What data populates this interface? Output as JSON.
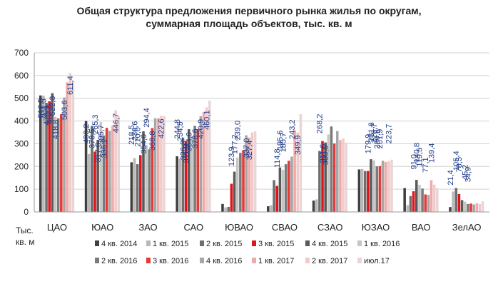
{
  "chart_data": {
    "type": "bar",
    "title_lines": [
      "Общая структура  предложения первичного рынка жилья по округам,",
      "суммарная площадь объектов, тыс. кв. м"
    ],
    "ylabel_lines": [
      "Тыс.",
      "кв. м"
    ],
    "ylim": [
      0,
      700
    ],
    "yticks": [
      0,
      100,
      200,
      300,
      400,
      500,
      600,
      700
    ],
    "grid": true,
    "legend_position": "bottom",
    "categories": [
      "ЦАО",
      "ЮАО",
      "ЗАО",
      "САО",
      "ЮВАО",
      "СВАО",
      "СЗАО",
      "ЮЗАО",
      "ВАО",
      "ЗелАО"
    ],
    "colors": [
      "#404040",
      "#b8b8b8",
      "#6e6e6e",
      "#e0141c",
      "#5a5a5a",
      "#c6c6c6",
      "#7a7a7a",
      "#e33a3a",
      "#a6a6a6",
      "#efaaaa",
      "#f3caca",
      "#e8d6d6"
    ],
    "series": [
      {
        "name": "4 кв. 2014",
        "values": [
          512.5,
          400.2,
          218.5,
          244.8,
          35.0,
          25.0,
          50.0,
          187.0,
          105.0,
          21.4
        ],
        "labels": [
          "512,5",
          "400,2",
          "218,5",
          "244,8",
          "",
          "",
          "",
          "",
          "",
          "21,4"
        ]
      },
      {
        "name": "1 кв. 2015",
        "values": [
          511.5,
          255.0,
          236.6,
          234.5,
          20.0,
          30.0,
          55.0,
          189.0,
          30.0,
          90.0
        ],
        "labels": [
          "511,5",
          "",
          "236,6",
          "234,5",
          "",
          "",
          "",
          "",
          "",
          ""
        ]
      },
      {
        "name": "2 кв. 2015",
        "values": [
          479.9,
          378.5,
          210.0,
          326.8,
          22.0,
          140.0,
          268.2,
          180.0,
          70.0,
          105.4
        ],
        "labels": [
          "479,9",
          "378,5",
          "210,0",
          "326,8",
          "",
          "",
          "268,2",
          "",
          "",
          "105,4"
        ]
      },
      {
        "name": "3 кв. 2015",
        "values": [
          487.0,
          265.3,
          250.0,
          311.9,
          123.9,
          114.8,
          311.6,
          179.9,
          91.0,
          78.5
        ],
        "labels": [
          "487,0",
          "265,3",
          "",
          "311,9",
          "123,9",
          "114,8",
          "311,6",
          "179,9",
          "91,0",
          "78,5"
        ]
      },
      {
        "name": "4 кв. 2015",
        "values": [
          522.3,
          317.0,
          354.6,
          364.0,
          177.2,
          195.6,
          305.5,
          231.8,
          140.8,
          52.0
        ],
        "labels": [
          "522,3",
          "317,0",
          "354,6",
          "364,0",
          "177,2",
          "195,6",
          "305,5",
          "231,8",
          "140,8",
          ""
        ]
      },
      {
        "name": "1 кв. 2016",
        "values": [
          418.8,
          395.7,
          294.4,
          334.0,
          239.0,
          185.7,
          341.0,
          226.7,
          119.5,
          45.2
        ],
        "labels": [
          "418,8",
          "395,7",
          "294,4",
          "",
          "239,0",
          "185,7",
          "",
          "226,7",
          "119,5",
          "45,2"
        ]
      },
      {
        "name": "2 кв. 2016",
        "values": [
          412.0,
          336.2,
          275.0,
          378.6,
          260.0,
          210.0,
          376.0,
          200.6,
          103.0,
          34.9
        ],
        "labels": [
          "",
          "336,2",
          "",
          "378,6",
          "",
          "",
          "",
          "200,6",
          "",
          "34,9"
        ]
      },
      {
        "name": "3 кв. 2016",
        "values": [
          430.0,
          370.0,
          368.8,
          364.0,
          272.0,
          225.0,
          301.0,
          201.9,
          77.1,
          37.0
        ],
        "labels": [
          "",
          "",
          "368,8",
          "",
          "",
          "",
          "",
          "201,9",
          "77,1",
          ""
        ]
      },
      {
        "name": "4 кв. 2016",
        "values": [
          503.6,
          357.0,
          412.0,
          420.9,
          337.0,
          243.2,
          356.0,
          225.0,
          75.0,
          33.0
        ],
        "labels": [
          "503,6",
          "",
          "",
          "420,9",
          "337,0",
          "243,2",
          "",
          "",
          "",
          ""
        ]
      },
      {
        "name": "1 кв. 2017",
        "values": [
          570.0,
          380.0,
          413.0,
          440.0,
          327.4,
          360.0,
          316.0,
          220.0,
          139.4,
          38.0
        ],
        "labels": [
          "",
          "",
          "",
          "",
          "327,4",
          "",
          "",
          "",
          "139,4",
          ""
        ]
      },
      {
        "name": "2 кв. 2017",
        "values": [
          611.4,
          446.7,
          422.6,
          460.1,
          350.0,
          349.9,
          323.0,
          223.7,
          120.0,
          35.0
        ],
        "labels": [
          "611,4",
          "446,7",
          "422,6",
          "460,1",
          "",
          "349,9",
          "",
          "223,7",
          "",
          ""
        ]
      },
      {
        "name": "июл.17",
        "values": [
          575.0,
          420.0,
          422.0,
          490.0,
          355.0,
          430.0,
          305.0,
          230.0,
          105.0,
          47.0
        ],
        "labels": [
          "",
          "",
          "",
          "",
          "",
          "",
          "",
          "",
          "",
          ""
        ]
      }
    ]
  }
}
